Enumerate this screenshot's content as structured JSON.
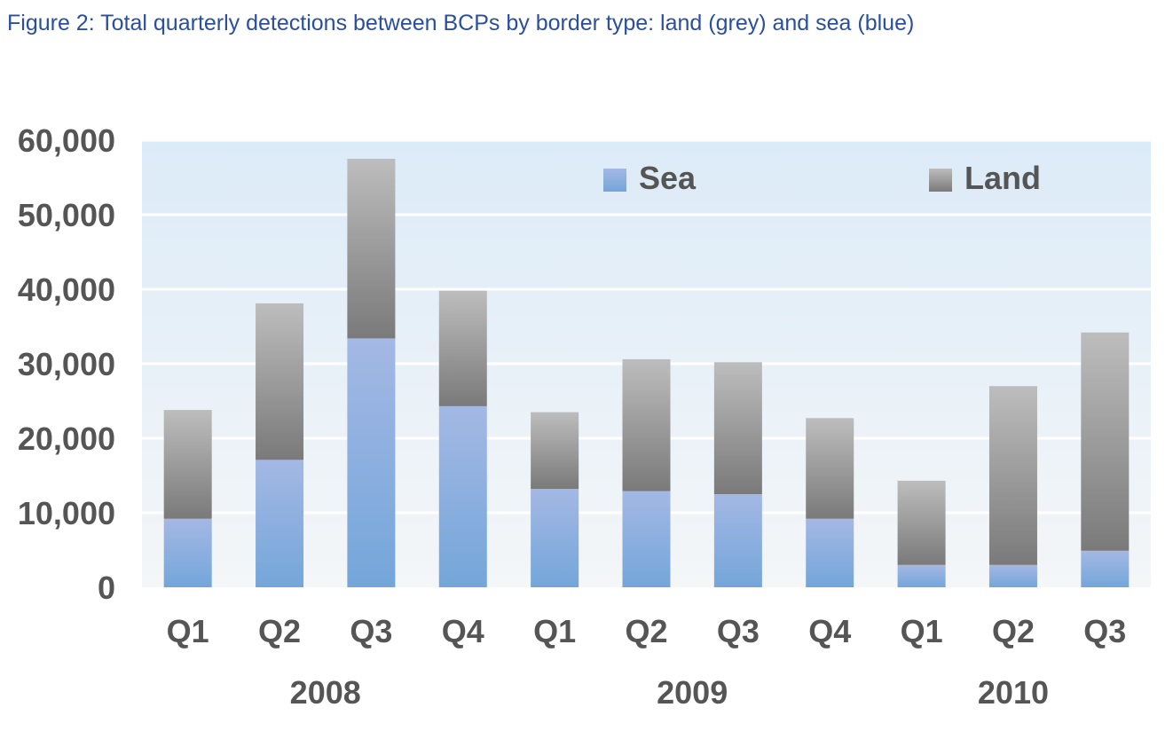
{
  "title": "Figure 2: Total quarterly detections between BCPs by border type: land (grey) and sea (blue)",
  "chart_data": {
    "type": "bar",
    "stacked": true,
    "title": "Figure 2: Total quarterly detections between BCPs by border type: land (grey) and sea (blue)",
    "categories": [
      "Q1",
      "Q2",
      "Q3",
      "Q4",
      "Q1",
      "Q2",
      "Q3",
      "Q4",
      "Q1",
      "Q2",
      "Q3"
    ],
    "groups": [
      {
        "label": "2008",
        "count": 4
      },
      {
        "label": "2009",
        "count": 4
      },
      {
        "label": "2010",
        "count": 3
      }
    ],
    "series": [
      {
        "name": "Sea",
        "color": "#7fa6dc",
        "values": [
          9200,
          17100,
          33400,
          24300,
          13200,
          12900,
          12500,
          9200,
          3000,
          3000,
          4900
        ]
      },
      {
        "name": "Land",
        "color": "#8c8c8c",
        "values": [
          14600,
          21000,
          24100,
          15500,
          10300,
          17700,
          17700,
          13500,
          11300,
          24000,
          29300
        ]
      }
    ],
    "ylim": [
      0,
      60000
    ],
    "yticks": [
      "0",
      "10,000",
      "20,000",
      "30,000",
      "40,000",
      "50,000",
      "60,000"
    ],
    "grid": true,
    "legend": "top-right",
    "xlabel": "",
    "ylabel": ""
  }
}
